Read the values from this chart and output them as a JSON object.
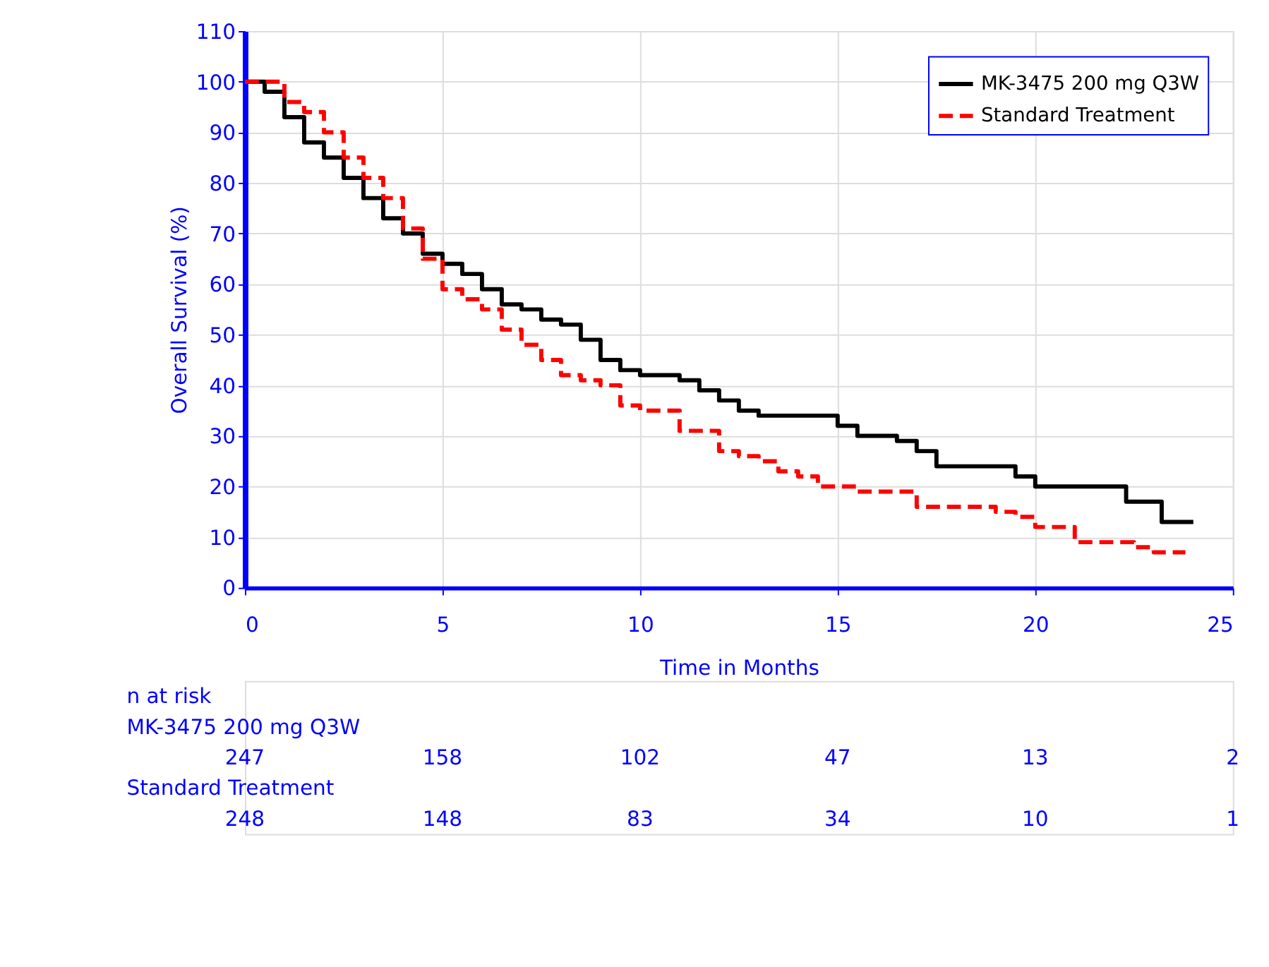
{
  "chart_data": {
    "type": "step",
    "xlabel": "Time in Months",
    "ylabel": "Overall Survival (%)",
    "xlim": [
      0,
      25
    ],
    "xticks": [
      0,
      5,
      10,
      15,
      20,
      25
    ],
    "ylim": [
      0,
      110
    ],
    "yticks": [
      0,
      10,
      20,
      30,
      40,
      50,
      60,
      70,
      80,
      90,
      100,
      110
    ],
    "grid": true,
    "legend": "top right",
    "series": [
      {
        "name": "MK-3475 200 mg Q3W",
        "color": "#000000",
        "line_style": "solid",
        "x": [
          0,
          0.5,
          1,
          1.5,
          2,
          2.5,
          3,
          3.5,
          4,
          4.5,
          5,
          5.5,
          6,
          6.5,
          7,
          7.5,
          8,
          8.5,
          9,
          9.5,
          10,
          11,
          11.5,
          12,
          12.5,
          13,
          14.5,
          15,
          15.5,
          16.5,
          17,
          17.5,
          19.5,
          20,
          22.3,
          23.2,
          24
        ],
        "values": [
          100,
          98,
          93,
          88,
          85,
          81,
          77,
          73,
          70,
          66,
          64,
          62,
          59,
          56,
          55,
          53,
          52,
          49,
          45,
          43,
          42,
          41,
          39,
          37,
          35,
          34,
          34,
          32,
          30,
          29,
          27,
          24,
          22,
          20,
          17,
          13,
          13
        ]
      },
      {
        "name": "Standard Treatment",
        "color": "#ff0000",
        "line_style": "dashed",
        "x": [
          0,
          1,
          1.5,
          2,
          2.5,
          3,
          3.5,
          4,
          4.5,
          5,
          5.5,
          6,
          6.5,
          7,
          7.5,
          8,
          8.5,
          9,
          9.5,
          10,
          11,
          12,
          12.5,
          13,
          13.5,
          14,
          14.5,
          15.5,
          17,
          19,
          19.5,
          20,
          21,
          22.5,
          23,
          23.8
        ],
        "values": [
          100,
          96,
          94,
          90,
          85,
          81,
          77,
          71,
          65,
          59,
          57,
          55,
          51,
          48,
          45,
          42,
          41,
          40,
          36,
          35,
          31,
          27,
          26,
          25,
          23,
          22,
          20,
          19,
          16,
          15,
          14,
          12,
          9,
          8,
          7,
          7
        ]
      }
    ],
    "annotations": [
      "n at risk",
      "MK-3475 200 mg Q3W",
      "247",
      "158",
      "102",
      "47",
      "13",
      "2",
      "Standard Treatment",
      "248",
      "148",
      "83",
      "34",
      "10",
      "1"
    ]
  }
}
